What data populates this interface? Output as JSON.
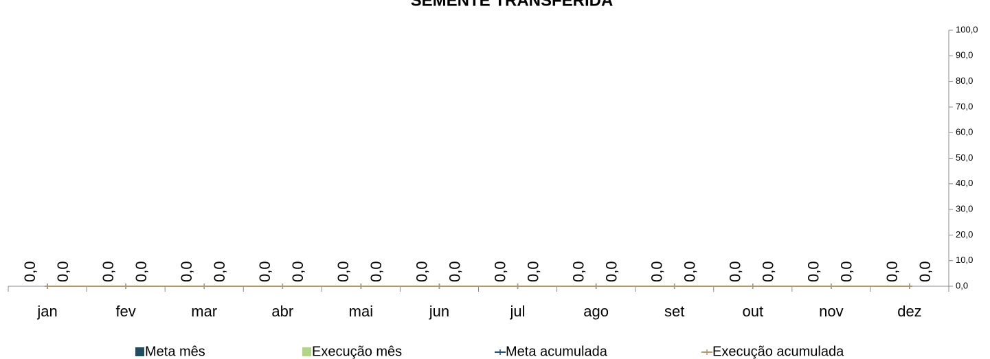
{
  "chart_data": {
    "type": "bar",
    "title": "SEMENTE TRANSFERIDA",
    "categories": [
      "jan",
      "fev",
      "mar",
      "abr",
      "mai",
      "jun",
      "jul",
      "ago",
      "set",
      "out",
      "nov",
      "dez"
    ],
    "series": [
      {
        "name": "Meta mês",
        "type": "bar",
        "color": "#1f4e63",
        "values": [
          0,
          0,
          0,
          0,
          0,
          0,
          0,
          0,
          0,
          0,
          0,
          0
        ],
        "value_labels": [
          "0,0",
          "0,0",
          "0,0",
          "0,0",
          "0,0",
          "0,0",
          "0,0",
          "0,0",
          "0,0",
          "0,0",
          "0,0",
          "0,0"
        ]
      },
      {
        "name": "Execução mês",
        "type": "bar",
        "color": "#b3d48a",
        "values": [
          0,
          0,
          0,
          0,
          0,
          0,
          0,
          0,
          0,
          0,
          0,
          0
        ],
        "value_labels": [
          "0,0",
          "0,0",
          "0,0",
          "0,0",
          "0,0",
          "0,0",
          "0,0",
          "0,0",
          "0,0",
          "0,0",
          "0,0",
          "0,0"
        ]
      },
      {
        "name": "Meta acumulada",
        "type": "line",
        "color": "#1f4e79",
        "values": [
          0,
          0,
          0,
          0,
          0,
          0,
          0,
          0,
          0,
          0,
          0,
          0
        ]
      },
      {
        "name": "Execução acumulada",
        "type": "line",
        "color": "#b5996a",
        "values": [
          0,
          0,
          0,
          0,
          0,
          0,
          0,
          0,
          0,
          0,
          0,
          0
        ]
      }
    ],
    "ylim": [
      0,
      100
    ],
    "yticks": [
      {
        "value": 0,
        "label": "0,0"
      },
      {
        "value": 10,
        "label": "10,0"
      },
      {
        "value": 20,
        "label": "20,0"
      },
      {
        "value": 30,
        "label": "30,0"
      },
      {
        "value": 40,
        "label": "40,0"
      },
      {
        "value": 50,
        "label": "50,0"
      },
      {
        "value": 60,
        "label": "60,0"
      },
      {
        "value": 70,
        "label": "70,0"
      },
      {
        "value": 80,
        "label": "80,0"
      },
      {
        "value": 90,
        "label": "90,0"
      },
      {
        "value": 100,
        "label": "100,0"
      }
    ],
    "grid": false
  }
}
